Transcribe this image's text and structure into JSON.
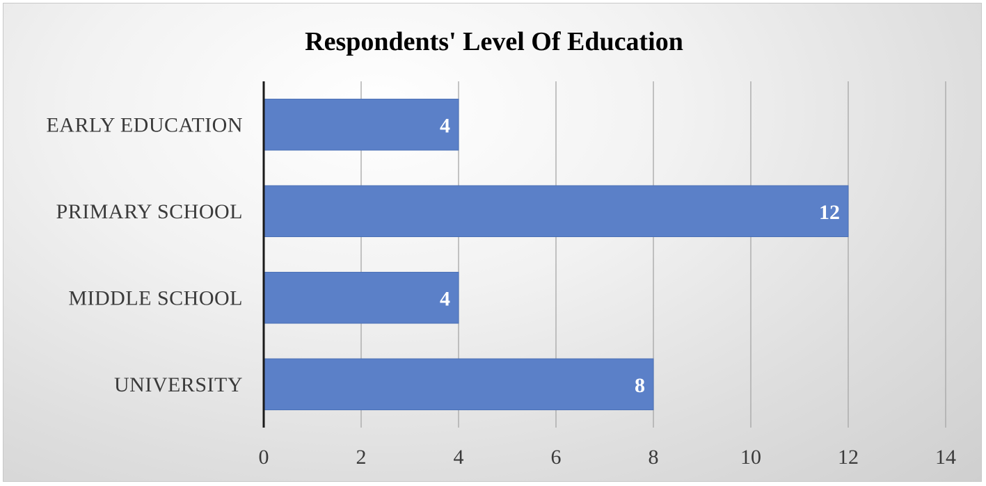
{
  "chart_data": {
    "type": "bar",
    "orientation": "horizontal",
    "title": "Respondents' Level Of Education",
    "categories": [
      "EARLY EDUCATION",
      "PRIMARY SCHOOL",
      "MIDDLE SCHOOL",
      "UNIVERSITY"
    ],
    "values": [
      4,
      12,
      4,
      8
    ],
    "data_labels": [
      "4",
      "12",
      "4",
      "8"
    ],
    "xlim": [
      0,
      14
    ],
    "xticks": [
      0,
      2,
      4,
      6,
      8,
      10,
      12,
      14
    ],
    "xlabel": "",
    "ylabel": "",
    "grid": "vertical",
    "legend": "none",
    "colors": {
      "bar": "#5b80c8",
      "bar_edge": "#4a6fb5",
      "grid": "#a6a6a6",
      "axis": "#1a1a1a"
    }
  }
}
